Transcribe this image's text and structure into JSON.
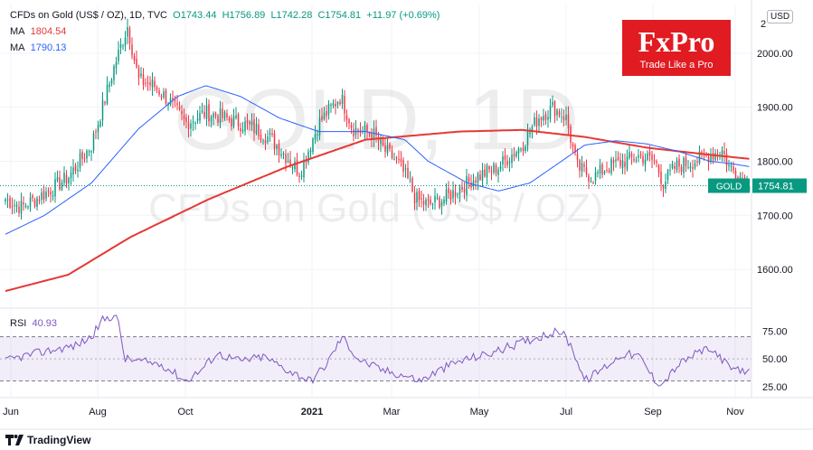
{
  "header": {
    "symbol_line": "CFDs on Gold (US$ / OZ), 1D, TVC",
    "open": "O1743.44",
    "high": "H1756.89",
    "low": "L1742.28",
    "close": "C1754.81",
    "change": "+11.97 (+0.69%)",
    "ma1_label": "MA",
    "ma1_value": "1804.54",
    "ma2_label": "MA",
    "ma2_value": "1790.13",
    "rsi_label": "RSI",
    "rsi_value": "40.93"
  },
  "watermark": {
    "symbol": "GOLD, 1D",
    "name": "CFDs on Gold (US$ / OZ)"
  },
  "logo": {
    "brand": "FxPro",
    "tagline": "Trade Like a Pro"
  },
  "currency": "USD",
  "footer": {
    "brand": "TradingView"
  },
  "price_tag": {
    "name": "GOLD",
    "value": "1754.81"
  },
  "colors": {
    "up": "#089981",
    "down": "#f23645",
    "ma1": "#e53935",
    "ma2": "#2962ff",
    "rsi": "#7e57c2",
    "brand": "#e11b22"
  },
  "chart_data": [
    {
      "type": "candlestick",
      "title": "CFDs on Gold (US$ / OZ), 1D, TVC",
      "ylim": [
        1530,
        2090
      ],
      "yticks": [
        1600,
        1700,
        1800,
        1900,
        2000
      ],
      "ytick_labels": [
        "1600.00",
        "1700.00",
        "1800.00",
        "1900.00",
        "2000.00"
      ],
      "top_tick_label": "2",
      "x_labels": [
        "Jun",
        "Aug",
        "Oct",
        "2021",
        "Mar",
        "May",
        "Jul",
        "Sep",
        "Nov"
      ],
      "grid": true,
      "n_bars": 330,
      "close_anchors": [
        [
          0,
          1730
        ],
        [
          10,
          1715
        ],
        [
          25,
          1740
        ],
        [
          40,
          1770
        ],
        [
          55,
          1830
        ],
        [
          70,
          1980
        ],
        [
          78,
          2050
        ],
        [
          85,
          1950
        ],
        [
          95,
          1940
        ],
        [
          105,
          1910
        ],
        [
          115,
          1870
        ],
        [
          128,
          1890
        ],
        [
          140,
          1880
        ],
        [
          160,
          1860
        ],
        [
          170,
          1840
        ],
        [
          182,
          1800
        ],
        [
          188,
          1780
        ],
        [
          200,
          1870
        ],
        [
          214,
          1920
        ],
        [
          222,
          1860
        ],
        [
          235,
          1850
        ],
        [
          242,
          1820
        ],
        [
          250,
          1800
        ],
        [
          258,
          1760
        ],
        [
          262,
          1730
        ],
        [
          270,
          1720
        ],
        [
          280,
          1730
        ],
        [
          290,
          1750
        ],
        [
          300,
          1770
        ],
        [
          315,
          1790
        ],
        [
          330,
          1830
        ],
        [
          340,
          1880
        ],
        [
          350,
          1900
        ],
        [
          358,
          1880
        ],
        [
          365,
          1790
        ],
        [
          375,
          1770
        ],
        [
          385,
          1790
        ],
        [
          395,
          1800
        ],
        [
          405,
          1810
        ],
        [
          415,
          1800
        ],
        [
          420,
          1760
        ],
        [
          428,
          1790
        ],
        [
          440,
          1800
        ],
        [
          448,
          1810
        ],
        [
          458,
          1820
        ],
        [
          462,
          1790
        ],
        [
          470,
          1770
        ],
        [
          475,
          1754.81
        ]
      ],
      "last_bar": {
        "open": 1743.44,
        "high": 1756.89,
        "low": 1742.28,
        "close": 1754.81
      },
      "series": [
        {
          "name": "MA",
          "value_label": "1804.54",
          "anchors": [
            [
              0,
              1560
            ],
            [
              40,
              1590
            ],
            [
              80,
              1660
            ],
            [
              130,
              1730
            ],
            [
              180,
              1790
            ],
            [
              230,
              1840
            ],
            [
              290,
              1855
            ],
            [
              330,
              1858
            ],
            [
              370,
              1845
            ],
            [
              410,
              1825
            ],
            [
              450,
              1812
            ],
            [
              475,
              1804.54
            ]
          ]
        },
        {
          "name": "MA",
          "value_label": "1790.13",
          "anchors": [
            [
              0,
              1665
            ],
            [
              25,
              1700
            ],
            [
              55,
              1760
            ],
            [
              85,
              1860
            ],
            [
              110,
              1920
            ],
            [
              128,
              1940
            ],
            [
              150,
              1920
            ],
            [
              175,
              1880
            ],
            [
              200,
              1855
            ],
            [
              230,
              1855
            ],
            [
              255,
              1840
            ],
            [
              270,
              1800
            ],
            [
              295,
              1760
            ],
            [
              315,
              1745
            ],
            [
              335,
              1760
            ],
            [
              350,
              1790
            ],
            [
              370,
              1830
            ],
            [
              390,
              1838
            ],
            [
              410,
              1832
            ],
            [
              430,
              1818
            ],
            [
              450,
              1800
            ],
            [
              465,
              1795
            ],
            [
              475,
              1790.13
            ]
          ]
        }
      ]
    },
    {
      "type": "line",
      "title": "RSI",
      "value_label": "40.93",
      "ylim": [
        15,
        95
      ],
      "band": [
        30,
        70
      ],
      "mid": 50,
      "yticks": [
        25,
        50,
        75
      ],
      "ytick_labels": [
        "25.00",
        "50.00",
        "75.00"
      ],
      "series": [
        {
          "name": "RSI",
          "anchors": [
            [
              0,
              48
            ],
            [
              10,
              52
            ],
            [
              20,
              55
            ],
            [
              30,
              58
            ],
            [
              45,
              62
            ],
            [
              55,
              70
            ],
            [
              62,
              85
            ],
            [
              70,
              90
            ],
            [
              73,
              78
            ],
            [
              76,
              50
            ],
            [
              85,
              48
            ],
            [
              100,
              45
            ],
            [
              115,
              30
            ],
            [
              125,
              40
            ],
            [
              135,
              55
            ],
            [
              150,
              48
            ],
            [
              165,
              52
            ],
            [
              180,
              40
            ],
            [
              195,
              30
            ],
            [
              205,
              45
            ],
            [
              215,
              70
            ],
            [
              225,
              50
            ],
            [
              240,
              40
            ],
            [
              255,
              35
            ],
            [
              265,
              30
            ],
            [
              275,
              38
            ],
            [
              285,
              45
            ],
            [
              295,
              50
            ],
            [
              310,
              55
            ],
            [
              330,
              65
            ],
            [
              345,
              72
            ],
            [
              355,
              75
            ],
            [
              362,
              60
            ],
            [
              370,
              30
            ],
            [
              380,
              40
            ],
            [
              395,
              55
            ],
            [
              405,
              52
            ],
            [
              415,
              30
            ],
            [
              420,
              28
            ],
            [
              430,
              45
            ],
            [
              445,
              58
            ],
            [
              455,
              55
            ],
            [
              462,
              42
            ],
            [
              470,
              38
            ],
            [
              475,
              40.93
            ]
          ]
        }
      ]
    }
  ]
}
